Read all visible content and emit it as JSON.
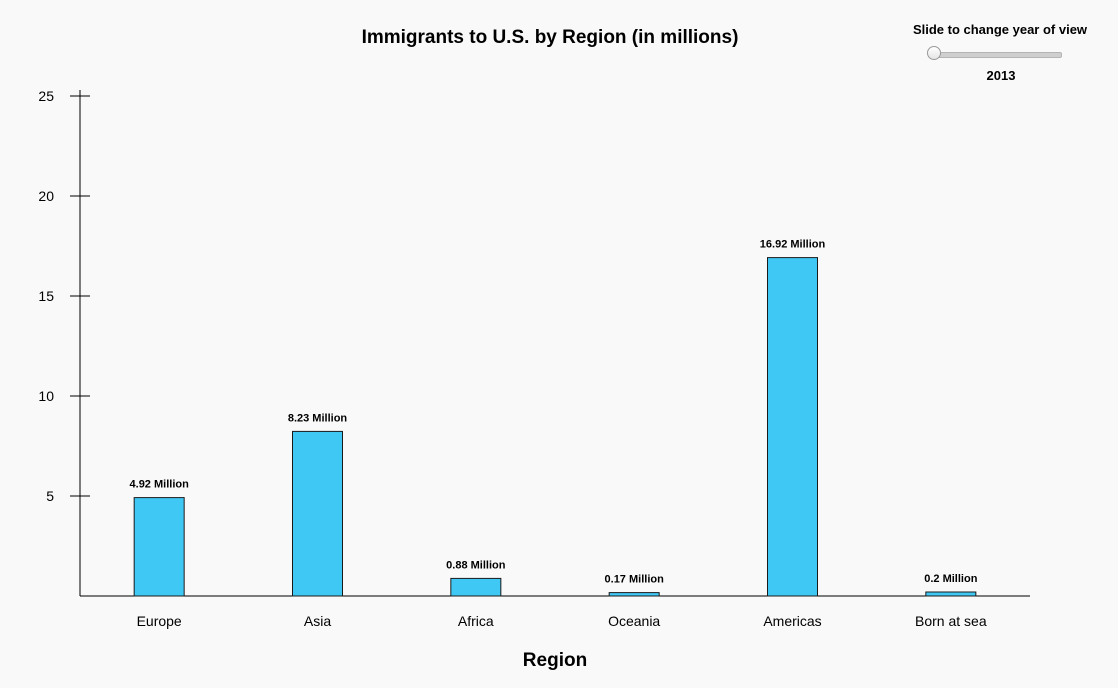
{
  "chart_data": {
    "type": "bar",
    "title": "Immigrants to U.S. by Region (in millions)",
    "xlabel": "Region",
    "ylabel": "",
    "categories": [
      "Europe",
      "Asia",
      "Africa",
      "Oceania",
      "Americas",
      "Born at sea"
    ],
    "values": [
      4.92,
      8.23,
      0.88,
      0.17,
      16.92,
      0.2
    ],
    "value_labels": [
      "4.92  Million",
      "8.23  Million",
      "0.88  Million",
      "0.17  Million",
      "16.92  Million",
      "0.2  Million"
    ],
    "ylim": [
      0,
      25
    ],
    "yticks": [
      5,
      10,
      15,
      20,
      25
    ],
    "grid": false,
    "legend": "none",
    "bar_color": "#40c8f4",
    "bar_stroke": "#1a1a1a"
  },
  "slider": {
    "caption": "Slide to change year of view",
    "year": "2013",
    "position_fraction": 0.0
  }
}
